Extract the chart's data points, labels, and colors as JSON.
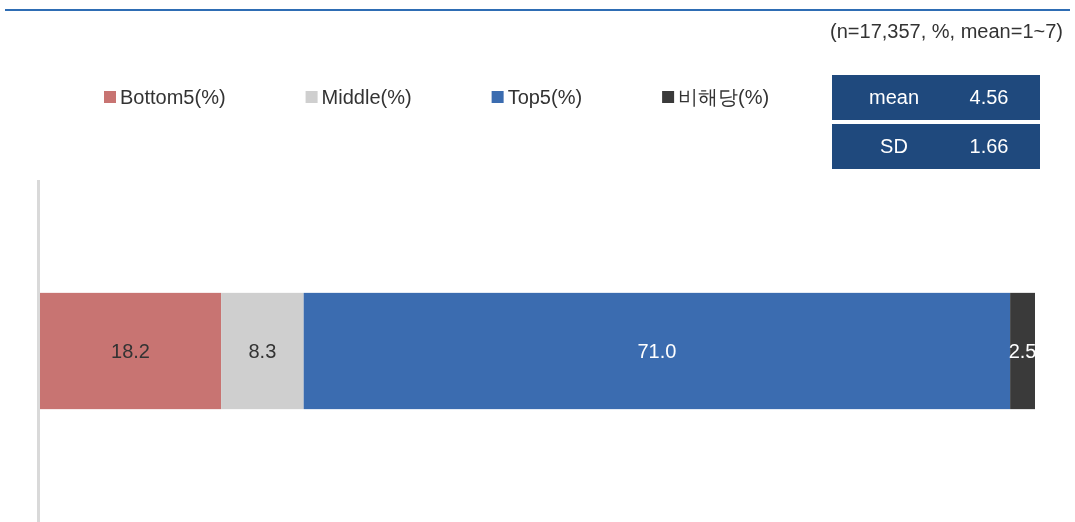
{
  "chart_data": {
    "type": "bar",
    "orientation": "horizontal",
    "stacked": true,
    "categories": [
      null
    ],
    "series": [
      {
        "name": "Bottom5(%)",
        "color": "#c87472",
        "values": [
          18.2
        ],
        "value_labels": [
          "18.2"
        ]
      },
      {
        "name": "Middle(%)",
        "color": "#cfcfcf",
        "values": [
          8.3
        ],
        "value_labels": [
          "8.3"
        ]
      },
      {
        "name": "Top5(%)",
        "color": "#3b6cb0",
        "values": [
          71.0
        ],
        "value_labels": [
          "71.0"
        ]
      },
      {
        "name": "비해당(%)",
        "color": "#3a3a3a",
        "values": [
          2.5
        ],
        "value_labels": [
          "2.5"
        ]
      }
    ],
    "legend": "top",
    "annotations": [
      "(n=17,357, %, mean=1~7)",
      "mean",
      "4.56",
      "SD",
      "1.66"
    ]
  }
}
